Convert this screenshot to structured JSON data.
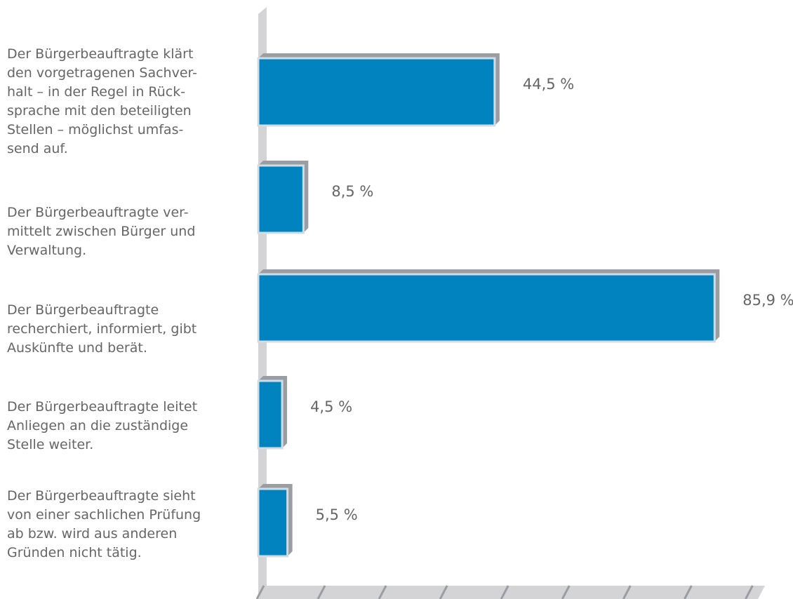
{
  "chart_data": {
    "type": "bar",
    "orientation": "horizontal",
    "categories": [
      "Der Bürgerbeauftragte klärt\nden vorgetragenen Sachver-\nhalt – in der Regel in Rück-\nsprache mit den beteiligten\nStellen – möglichst umfas-\nsend auf.",
      "Der Bürgerbeauftragte ver-\nmittelt zwischen Bürger und\nVerwaltung.",
      "Der Bürgerbeauftragte\nrecherchiert, informiert, gibt\nAuskünfte und berät.",
      "Der Bürgerbeauftragte leitet\nAnliegen an die zuständige\nStelle weiter.",
      "Der Bürgerbeauftragte sieht\nvon einer sachlichen Prüfung\nab bzw. wird aus anderen\nGründen nicht tätig."
    ],
    "values": [
      44.5,
      8.5,
      85.9,
      4.5,
      5.5
    ],
    "value_labels": [
      "44,5 %",
      "8,5 %",
      "85,9 %",
      "4,5 %",
      "5,5 %"
    ],
    "color": "#0083bf",
    "xlim": [
      0,
      100
    ],
    "xticks": [
      0,
      11.5,
      23,
      34.5,
      46,
      57.5,
      69,
      80.5,
      92
    ]
  }
}
